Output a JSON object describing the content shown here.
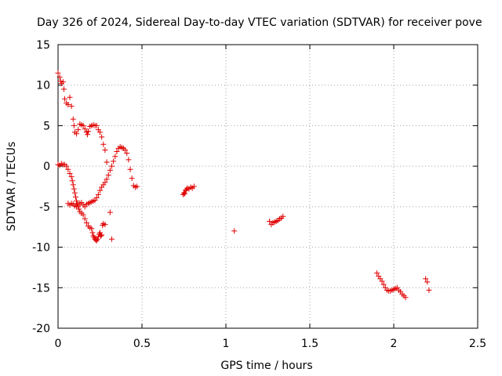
{
  "chart_data": {
    "type": "scatter",
    "title": "Day 326 of 2024, Sidereal Day-to-day VTEC variation (SDTVAR) for receiver pove",
    "xlabel": "GPS time / hours",
    "ylabel": "SDTVAR / TECUs",
    "xlim": [
      0,
      2.5
    ],
    "ylim": [
      -20,
      15
    ],
    "xticks": [
      0,
      0.5,
      1,
      1.5,
      2,
      2.5
    ],
    "xtick_labels": [
      "0",
      "0.5",
      "1",
      "1.5",
      "2",
      "2.5"
    ],
    "yticks": [
      -20,
      -15,
      -10,
      -5,
      0,
      5,
      10,
      15
    ],
    "ytick_labels": [
      "-20",
      "-15",
      "-10",
      "-5",
      "0",
      "5",
      "10",
      "15"
    ],
    "grid": true,
    "marker": "+",
    "series": [
      {
        "name": "SDTVAR",
        "color": "#e00000",
        "points": [
          [
            0.0,
            11.5
          ],
          [
            0.01,
            11.0
          ],
          [
            0.015,
            10.5
          ],
          [
            0.02,
            10.2
          ],
          [
            0.03,
            10.4
          ],
          [
            0.035,
            9.5
          ],
          [
            0.04,
            8.3
          ],
          [
            0.05,
            7.8
          ],
          [
            0.06,
            7.6
          ],
          [
            0.07,
            8.5
          ],
          [
            0.08,
            7.4
          ],
          [
            0.09,
            5.8
          ],
          [
            0.095,
            5.0
          ],
          [
            0.1,
            4.2
          ],
          [
            0.11,
            4.0
          ],
          [
            0.12,
            4.5
          ],
          [
            0.13,
            5.2
          ],
          [
            0.14,
            5.1
          ],
          [
            0.15,
            5.0
          ],
          [
            0.16,
            4.6
          ],
          [
            0.17,
            4.2
          ],
          [
            0.175,
            3.9
          ],
          [
            0.18,
            4.3
          ],
          [
            0.19,
            4.9
          ],
          [
            0.2,
            5.0
          ],
          [
            0.21,
            5.1
          ],
          [
            0.22,
            5.0
          ],
          [
            0.23,
            5.0
          ],
          [
            0.24,
            4.5
          ],
          [
            0.25,
            4.2
          ],
          [
            0.26,
            3.6
          ],
          [
            0.27,
            2.7
          ],
          [
            0.28,
            2.0
          ],
          [
            0.29,
            0.5
          ],
          [
            0.0,
            0.2
          ],
          [
            0.01,
            0.1
          ],
          [
            0.02,
            0.3
          ],
          [
            0.03,
            0.2
          ],
          [
            0.04,
            0.2
          ],
          [
            0.05,
            0.0
          ],
          [
            0.06,
            -0.4
          ],
          [
            0.07,
            -0.9
          ],
          [
            0.08,
            -1.3
          ],
          [
            0.085,
            -1.8
          ],
          [
            0.09,
            -2.3
          ],
          [
            0.095,
            -2.8
          ],
          [
            0.1,
            -3.3
          ],
          [
            0.105,
            -3.8
          ],
          [
            0.11,
            -4.3
          ],
          [
            0.115,
            -4.6
          ],
          [
            0.12,
            -5.0
          ],
          [
            0.125,
            -5.3
          ],
          [
            0.13,
            -5.6
          ],
          [
            0.14,
            -5.8
          ],
          [
            0.15,
            -6.0
          ],
          [
            0.16,
            -6.5
          ],
          [
            0.17,
            -7.0
          ],
          [
            0.18,
            -7.4
          ],
          [
            0.19,
            -7.6
          ],
          [
            0.2,
            -7.7
          ],
          [
            0.205,
            -8.2
          ],
          [
            0.21,
            -8.6
          ],
          [
            0.215,
            -8.8
          ],
          [
            0.22,
            -9.0
          ],
          [
            0.225,
            -9.1
          ],
          [
            0.23,
            -9.2
          ],
          [
            0.235,
            -9.0
          ],
          [
            0.24,
            -8.7
          ],
          [
            0.245,
            -8.4
          ],
          [
            0.25,
            -8.2
          ],
          [
            0.255,
            -8.6
          ],
          [
            0.26,
            -8.5
          ],
          [
            0.265,
            -7.3
          ],
          [
            0.27,
            -7.1
          ],
          [
            0.28,
            -7.2
          ],
          [
            0.31,
            -5.7
          ],
          [
            0.32,
            -9.0
          ],
          [
            0.06,
            -4.6
          ],
          [
            0.07,
            -4.8
          ],
          [
            0.08,
            -4.6
          ],
          [
            0.09,
            -4.7
          ],
          [
            0.1,
            -4.9
          ],
          [
            0.11,
            -5.0
          ],
          [
            0.12,
            -4.8
          ],
          [
            0.13,
            -4.6
          ],
          [
            0.14,
            -4.5
          ],
          [
            0.15,
            -4.8
          ],
          [
            0.16,
            -5.0
          ],
          [
            0.17,
            -4.7
          ],
          [
            0.18,
            -4.6
          ],
          [
            0.19,
            -4.5
          ],
          [
            0.2,
            -4.4
          ],
          [
            0.21,
            -4.3
          ],
          [
            0.22,
            -4.2
          ],
          [
            0.23,
            -3.9
          ],
          [
            0.24,
            -3.5
          ],
          [
            0.25,
            -3.0
          ],
          [
            0.26,
            -2.6
          ],
          [
            0.27,
            -2.3
          ],
          [
            0.28,
            -2.0
          ],
          [
            0.29,
            -1.6
          ],
          [
            0.3,
            -1.1
          ],
          [
            0.31,
            -0.5
          ],
          [
            0.32,
            0.0
          ],
          [
            0.33,
            0.6
          ],
          [
            0.34,
            1.2
          ],
          [
            0.35,
            1.8
          ],
          [
            0.36,
            2.2
          ],
          [
            0.37,
            2.4
          ],
          [
            0.38,
            2.3
          ],
          [
            0.39,
            2.2
          ],
          [
            0.4,
            2.0
          ],
          [
            0.41,
            1.6
          ],
          [
            0.42,
            0.8
          ],
          [
            0.43,
            -0.4
          ],
          [
            0.44,
            -1.5
          ],
          [
            0.45,
            -2.4
          ],
          [
            0.46,
            -2.6
          ],
          [
            0.47,
            -2.5
          ],
          [
            0.745,
            -3.5
          ],
          [
            0.75,
            -3.3
          ],
          [
            0.755,
            -3.4
          ],
          [
            0.76,
            -3.0
          ],
          [
            0.765,
            -2.9
          ],
          [
            0.77,
            -2.7
          ],
          [
            0.78,
            -2.8
          ],
          [
            0.79,
            -2.6
          ],
          [
            0.8,
            -2.7
          ],
          [
            0.81,
            -2.5
          ],
          [
            1.05,
            -8.0
          ],
          [
            1.26,
            -6.8
          ],
          [
            1.27,
            -7.2
          ],
          [
            1.28,
            -7.0
          ],
          [
            1.29,
            -6.9
          ],
          [
            1.3,
            -6.8
          ],
          [
            1.31,
            -6.7
          ],
          [
            1.32,
            -6.5
          ],
          [
            1.33,
            -6.4
          ],
          [
            1.34,
            -6.2
          ],
          [
            1.9,
            -13.2
          ],
          [
            1.91,
            -13.6
          ],
          [
            1.92,
            -13.9
          ],
          [
            1.93,
            -14.2
          ],
          [
            1.94,
            -14.6
          ],
          [
            1.95,
            -15.0
          ],
          [
            1.96,
            -15.3
          ],
          [
            1.97,
            -15.4
          ],
          [
            1.98,
            -15.4
          ],
          [
            1.99,
            -15.3
          ],
          [
            2.0,
            -15.2
          ],
          [
            2.01,
            -15.1
          ],
          [
            2.02,
            -15.0
          ],
          [
            2.03,
            -15.3
          ],
          [
            2.04,
            -15.5
          ],
          [
            2.05,
            -15.8
          ],
          [
            2.06,
            -16.0
          ],
          [
            2.07,
            -16.2
          ],
          [
            2.19,
            -13.9
          ],
          [
            2.2,
            -14.3
          ],
          [
            2.21,
            -15.3
          ]
        ]
      }
    ]
  }
}
